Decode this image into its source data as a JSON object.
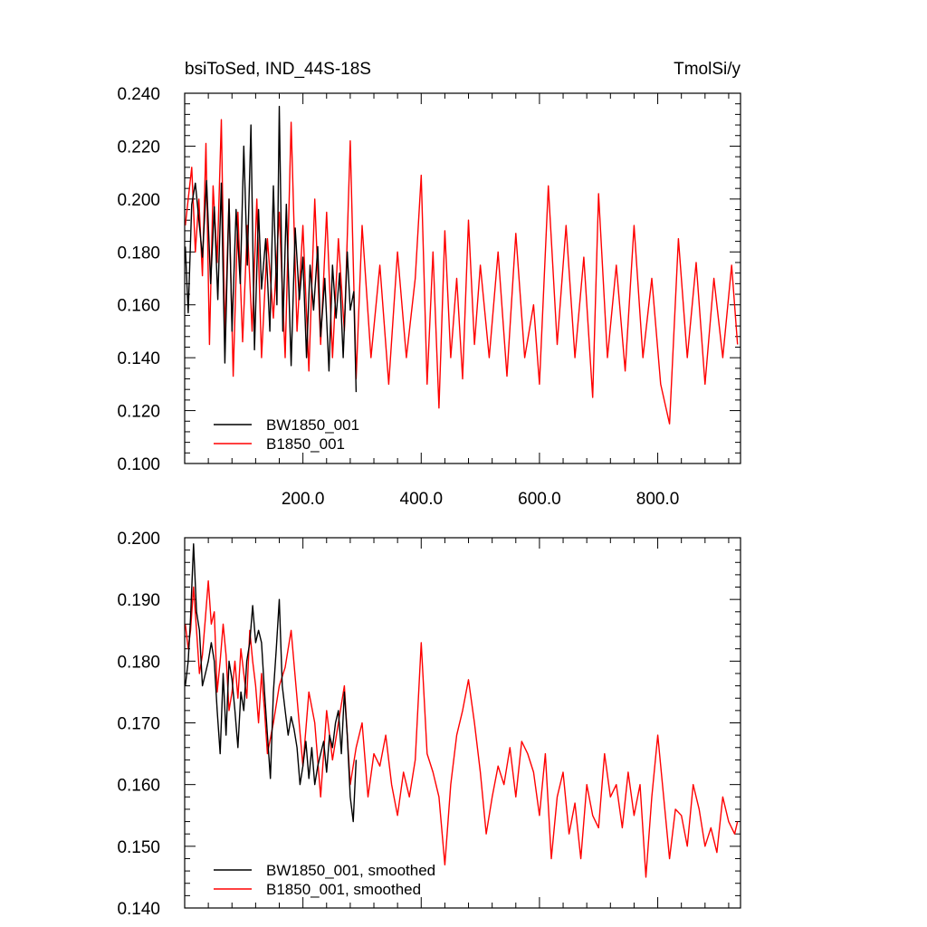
{
  "chart_data": [
    {
      "type": "line",
      "title_left": "bsiToSed, IND_44S-18S",
      "title_right": "TmolSi/y",
      "xlim": [
        0,
        940
      ],
      "ylim": [
        0.1,
        0.24
      ],
      "x_ticks": [
        200,
        400,
        600,
        800
      ],
      "x_tick_labels": [
        "200.0",
        "400.0",
        "600.0",
        "800.0"
      ],
      "y_ticks": [
        0.1,
        0.12,
        0.14,
        0.16,
        0.18,
        0.2,
        0.22,
        0.24
      ],
      "y_tick_labels": [
        "0.100",
        "0.120",
        "0.140",
        "0.160",
        "0.180",
        "0.200",
        "0.220",
        "0.240"
      ],
      "legend_placement": "bottom-left",
      "series": [
        {
          "name": "BW1850_001",
          "color": "#000000",
          "x": [
            1,
            6,
            12,
            18,
            25,
            30,
            37,
            44,
            50,
            56,
            62,
            68,
            75,
            80,
            87,
            94,
            100,
            106,
            112,
            118,
            125,
            130,
            137,
            144,
            150,
            156,
            160,
            166,
            172,
            180,
            187,
            194,
            200,
            206,
            212,
            218,
            225,
            230,
            237,
            244,
            250,
            256,
            262,
            268,
            275,
            280,
            286,
            290
          ],
          "values": [
            0.182,
            0.157,
            0.198,
            0.206,
            0.19,
            0.178,
            0.207,
            0.168,
            0.197,
            0.162,
            0.206,
            0.138,
            0.2,
            0.15,
            0.196,
            0.168,
            0.22,
            0.175,
            0.228,
            0.143,
            0.196,
            0.166,
            0.185,
            0.15,
            0.205,
            0.16,
            0.235,
            0.15,
            0.198,
            0.137,
            0.189,
            0.162,
            0.178,
            0.14,
            0.175,
            0.158,
            0.182,
            0.148,
            0.17,
            0.135,
            0.175,
            0.155,
            0.172,
            0.14,
            0.18,
            0.158,
            0.165,
            0.127
          ]
        },
        {
          "name": "B1850_001",
          "color": "#ff0000",
          "x": [
            1,
            6,
            12,
            18,
            24,
            30,
            36,
            42,
            48,
            55,
            62,
            68,
            75,
            82,
            90,
            98,
            106,
            114,
            122,
            130,
            140,
            150,
            160,
            170,
            180,
            190,
            200,
            210,
            220,
            230,
            240,
            250,
            260,
            270,
            280,
            290,
            300,
            315,
            330,
            345,
            360,
            375,
            390,
            400,
            410,
            420,
            430,
            440,
            450,
            460,
            470,
            480,
            490,
            500,
            515,
            530,
            545,
            560,
            575,
            590,
            600,
            615,
            630,
            645,
            660,
            675,
            690,
            700,
            715,
            730,
            745,
            760,
            775,
            790,
            805,
            820,
            835,
            850,
            865,
            880,
            895,
            910,
            925,
            935
          ],
          "values": [
            0.19,
            0.2,
            0.212,
            0.18,
            0.2,
            0.171,
            0.221,
            0.145,
            0.205,
            0.176,
            0.23,
            0.148,
            0.2,
            0.133,
            0.195,
            0.146,
            0.19,
            0.15,
            0.2,
            0.14,
            0.185,
            0.155,
            0.195,
            0.14,
            0.229,
            0.15,
            0.19,
            0.135,
            0.2,
            0.145,
            0.195,
            0.14,
            0.185,
            0.15,
            0.222,
            0.132,
            0.19,
            0.14,
            0.175,
            0.13,
            0.18,
            0.14,
            0.17,
            0.209,
            0.13,
            0.18,
            0.121,
            0.188,
            0.14,
            0.17,
            0.132,
            0.192,
            0.145,
            0.175,
            0.14,
            0.18,
            0.133,
            0.187,
            0.14,
            0.16,
            0.13,
            0.205,
            0.145,
            0.19,
            0.14,
            0.178,
            0.125,
            0.202,
            0.14,
            0.175,
            0.135,
            0.19,
            0.14,
            0.17,
            0.13,
            0.115,
            0.185,
            0.14,
            0.176,
            0.13,
            0.17,
            0.14,
            0.175,
            0.145
          ]
        }
      ]
    },
    {
      "type": "line",
      "xlim": [
        0,
        940
      ],
      "ylim": [
        0.14,
        0.2
      ],
      "y_ticks": [
        0.14,
        0.15,
        0.16,
        0.17,
        0.18,
        0.19,
        0.2
      ],
      "y_tick_labels": [
        "0.140",
        "0.150",
        "0.160",
        "0.170",
        "0.180",
        "0.190",
        "0.200"
      ],
      "legend_placement": "bottom-left",
      "series": [
        {
          "name": "BW1850_001, smoothed",
          "color": "#000000",
          "x": [
            1,
            6,
            10,
            15,
            20,
            25,
            30,
            35,
            40,
            45,
            50,
            55,
            60,
            65,
            70,
            75,
            80,
            85,
            90,
            95,
            100,
            105,
            110,
            115,
            120,
            125,
            130,
            135,
            140,
            145,
            150,
            155,
            160,
            165,
            170,
            175,
            180,
            185,
            190,
            195,
            200,
            205,
            210,
            215,
            220,
            225,
            230,
            235,
            240,
            245,
            250,
            255,
            260,
            265,
            270,
            275,
            280,
            285,
            290
          ],
          "values": [
            0.176,
            0.18,
            0.187,
            0.199,
            0.188,
            0.185,
            0.176,
            0.178,
            0.18,
            0.183,
            0.18,
            0.172,
            0.165,
            0.178,
            0.168,
            0.18,
            0.177,
            0.172,
            0.166,
            0.175,
            0.172,
            0.18,
            0.183,
            0.189,
            0.183,
            0.185,
            0.183,
            0.175,
            0.168,
            0.161,
            0.175,
            0.182,
            0.19,
            0.176,
            0.172,
            0.168,
            0.171,
            0.169,
            0.166,
            0.16,
            0.163,
            0.167,
            0.161,
            0.166,
            0.16,
            0.163,
            0.165,
            0.167,
            0.162,
            0.168,
            0.166,
            0.17,
            0.172,
            0.165,
            0.175,
            0.168,
            0.158,
            0.154,
            0.164
          ]
        },
        {
          "name": "B1850_001, smoothed",
          "color": "#ff0000",
          "x": [
            1,
            6,
            10,
            15,
            20,
            25,
            30,
            35,
            40,
            45,
            50,
            55,
            60,
            65,
            70,
            75,
            80,
            85,
            90,
            95,
            100,
            105,
            110,
            115,
            120,
            125,
            130,
            135,
            140,
            150,
            160,
            170,
            180,
            190,
            200,
            210,
            220,
            230,
            240,
            250,
            260,
            270,
            280,
            290,
            300,
            310,
            320,
            330,
            340,
            350,
            360,
            370,
            380,
            390,
            400,
            410,
            420,
            430,
            440,
            450,
            460,
            470,
            480,
            490,
            500,
            510,
            520,
            530,
            540,
            550,
            560,
            570,
            580,
            590,
            600,
            610,
            620,
            630,
            640,
            650,
            660,
            670,
            680,
            690,
            700,
            710,
            720,
            730,
            740,
            750,
            760,
            770,
            780,
            790,
            800,
            810,
            820,
            830,
            840,
            850,
            860,
            870,
            880,
            890,
            900,
            910,
            920,
            930,
            935
          ],
          "values": [
            0.186,
            0.182,
            0.185,
            0.192,
            0.185,
            0.178,
            0.181,
            0.187,
            0.193,
            0.186,
            0.188,
            0.175,
            0.18,
            0.186,
            0.181,
            0.172,
            0.175,
            0.18,
            0.174,
            0.182,
            0.178,
            0.174,
            0.185,
            0.18,
            0.176,
            0.17,
            0.178,
            0.172,
            0.165,
            0.17,
            0.176,
            0.179,
            0.185,
            0.174,
            0.163,
            0.175,
            0.17,
            0.158,
            0.172,
            0.164,
            0.17,
            0.176,
            0.16,
            0.166,
            0.17,
            0.158,
            0.165,
            0.163,
            0.168,
            0.16,
            0.155,
            0.162,
            0.158,
            0.164,
            0.183,
            0.165,
            0.162,
            0.158,
            0.147,
            0.16,
            0.168,
            0.172,
            0.177,
            0.17,
            0.162,
            0.152,
            0.158,
            0.163,
            0.16,
            0.166,
            0.158,
            0.167,
            0.165,
            0.162,
            0.155,
            0.165,
            0.148,
            0.158,
            0.162,
            0.152,
            0.157,
            0.148,
            0.16,
            0.155,
            0.153,
            0.165,
            0.158,
            0.16,
            0.153,
            0.162,
            0.155,
            0.16,
            0.145,
            0.158,
            0.168,
            0.158,
            0.148,
            0.156,
            0.155,
            0.15,
            0.16,
            0.156,
            0.15,
            0.153,
            0.149,
            0.158,
            0.154,
            0.152,
            0.154
          ]
        }
      ]
    }
  ]
}
